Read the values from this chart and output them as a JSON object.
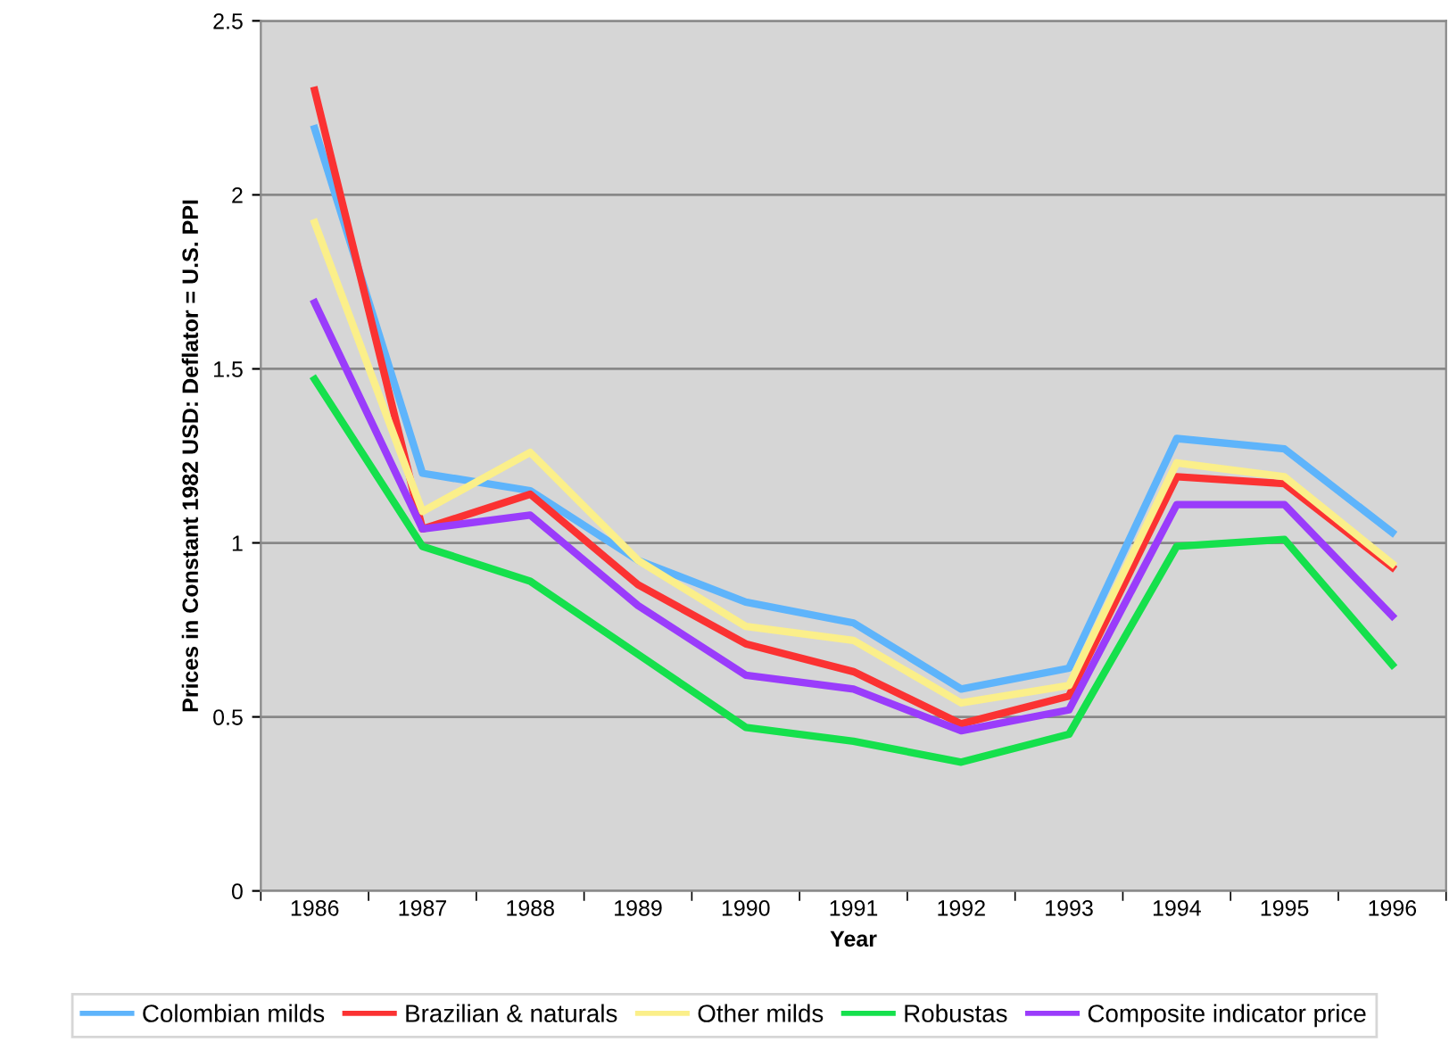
{
  "chart_data": {
    "type": "line",
    "xlabel": "Year",
    "ylabel": "Prices in Constant 1982 USD: Deflator = U.S. PPI",
    "categories": [
      "1986",
      "1987",
      "1988",
      "1989",
      "1990",
      "1991",
      "1992",
      "1993",
      "1994",
      "1995",
      "1996"
    ],
    "ylim": [
      0,
      2.5
    ],
    "yticks": [
      0,
      0.5,
      1,
      1.5,
      2,
      2.5
    ],
    "grid": "y",
    "legend": "bottom",
    "marker": "none",
    "line_style": "solid",
    "series": [
      {
        "name": "Colombian milds",
        "color": "#5eb4fb",
        "values": [
          2.19,
          1.2,
          1.15,
          0.95,
          0.83,
          0.77,
          0.58,
          0.64,
          1.3,
          1.27,
          1.03
        ]
      },
      {
        "name": "Brazilian & naturals",
        "color": "#fb3232",
        "values": [
          2.3,
          1.04,
          1.14,
          0.88,
          0.71,
          0.63,
          0.48,
          0.56,
          1.19,
          1.17,
          0.93
        ]
      },
      {
        "name": "Other milds",
        "color": "#fbef8a",
        "values": [
          1.92,
          1.09,
          1.26,
          0.95,
          0.76,
          0.72,
          0.54,
          0.59,
          1.23,
          1.19,
          0.94
        ]
      },
      {
        "name": "Robustas",
        "color": "#15e04c",
        "values": [
          1.47,
          0.99,
          0.89,
          0.68,
          0.47,
          0.43,
          0.37,
          0.45,
          0.99,
          1.01,
          0.65
        ]
      },
      {
        "name": "Composite indicator price",
        "color": "#9a3cfb",
        "values": [
          1.69,
          1.04,
          1.08,
          0.82,
          0.62,
          0.58,
          0.46,
          0.52,
          1.11,
          1.11,
          0.79
        ]
      }
    ]
  }
}
